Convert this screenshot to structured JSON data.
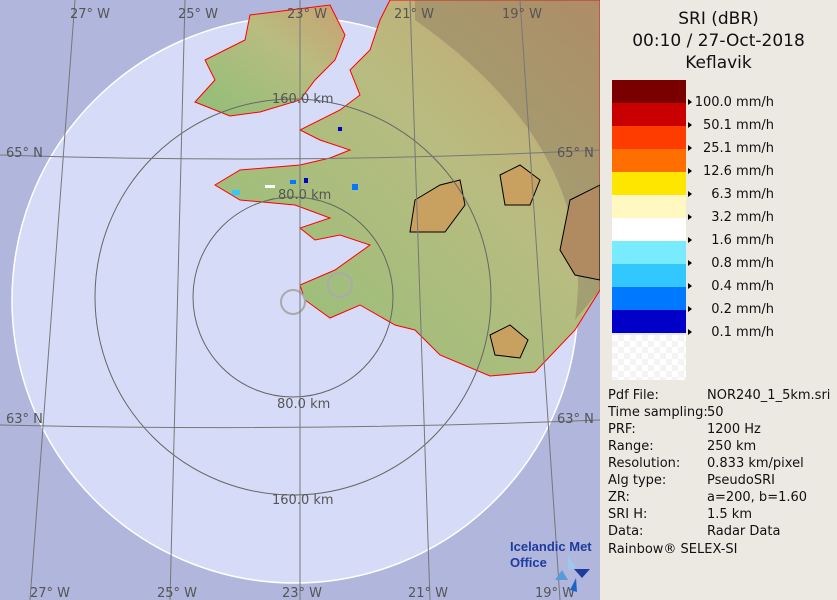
{
  "header": {
    "product": "SRI (dBR)",
    "datetime": "00:10 / 27-Oct-2018",
    "site": "Keflavik"
  },
  "legend": {
    "items": [
      {
        "label": "100.0 mm/h",
        "color": "#7a0000"
      },
      {
        "label": "50.1 mm/h",
        "color": "#c80000"
      },
      {
        "label": "25.1 mm/h",
        "color": "#ff3c00"
      },
      {
        "label": "12.6 mm/h",
        "color": "#ff6e00"
      },
      {
        "label": "6.3 mm/h",
        "color": "#ffe600"
      },
      {
        "label": "3.2 mm/h",
        "color": "#fff8c0"
      },
      {
        "label": "1.6 mm/h",
        "color": "#ffffff"
      },
      {
        "label": "0.8 mm/h",
        "color": "#78ebff"
      },
      {
        "label": "0.4 mm/h",
        "color": "#32c8ff"
      },
      {
        "label": "0.2 mm/h",
        "color": "#0078ff"
      },
      {
        "label": "0.1 mm/h",
        "color": "#0000c8"
      }
    ],
    "top_color": "#7a0000"
  },
  "info": [
    {
      "key": "Pdf File:",
      "value": "NOR240_1_5km.sri"
    },
    {
      "key": "Time sampling:",
      "value": "50"
    },
    {
      "key": "PRF:",
      "value": "1200 Hz"
    },
    {
      "key": "Range:",
      "value": "250 km"
    },
    {
      "key": "Resolution:",
      "value": "0.833 km/pixel"
    },
    {
      "key": "Alg type:",
      "value": "PseudoSRI"
    },
    {
      "key": "ZR:",
      "value": "a=200, b=1.60"
    },
    {
      "key": "SRI H:",
      "value": "1.5 km"
    },
    {
      "key": "Data:",
      "value": "Radar Data"
    }
  ],
  "credit": "Rainbow® SELEX-SI",
  "map": {
    "lon_top": [
      "27° W",
      "25° W",
      "23° W",
      "21° W",
      "19° W"
    ],
    "lon_bottom": [
      "27° W",
      "25° W",
      "23° W",
      "21° W",
      "19° W"
    ],
    "lat_left": [
      "65° N",
      "63° N"
    ],
    "lat_right": [
      "65° N",
      "63° N"
    ],
    "range_labels": [
      "160.0 km",
      "80.0 km",
      "80.0 km",
      "160.0 km"
    ],
    "logo": {
      "line1": "Icelandic Met",
      "line2": "Office"
    }
  }
}
